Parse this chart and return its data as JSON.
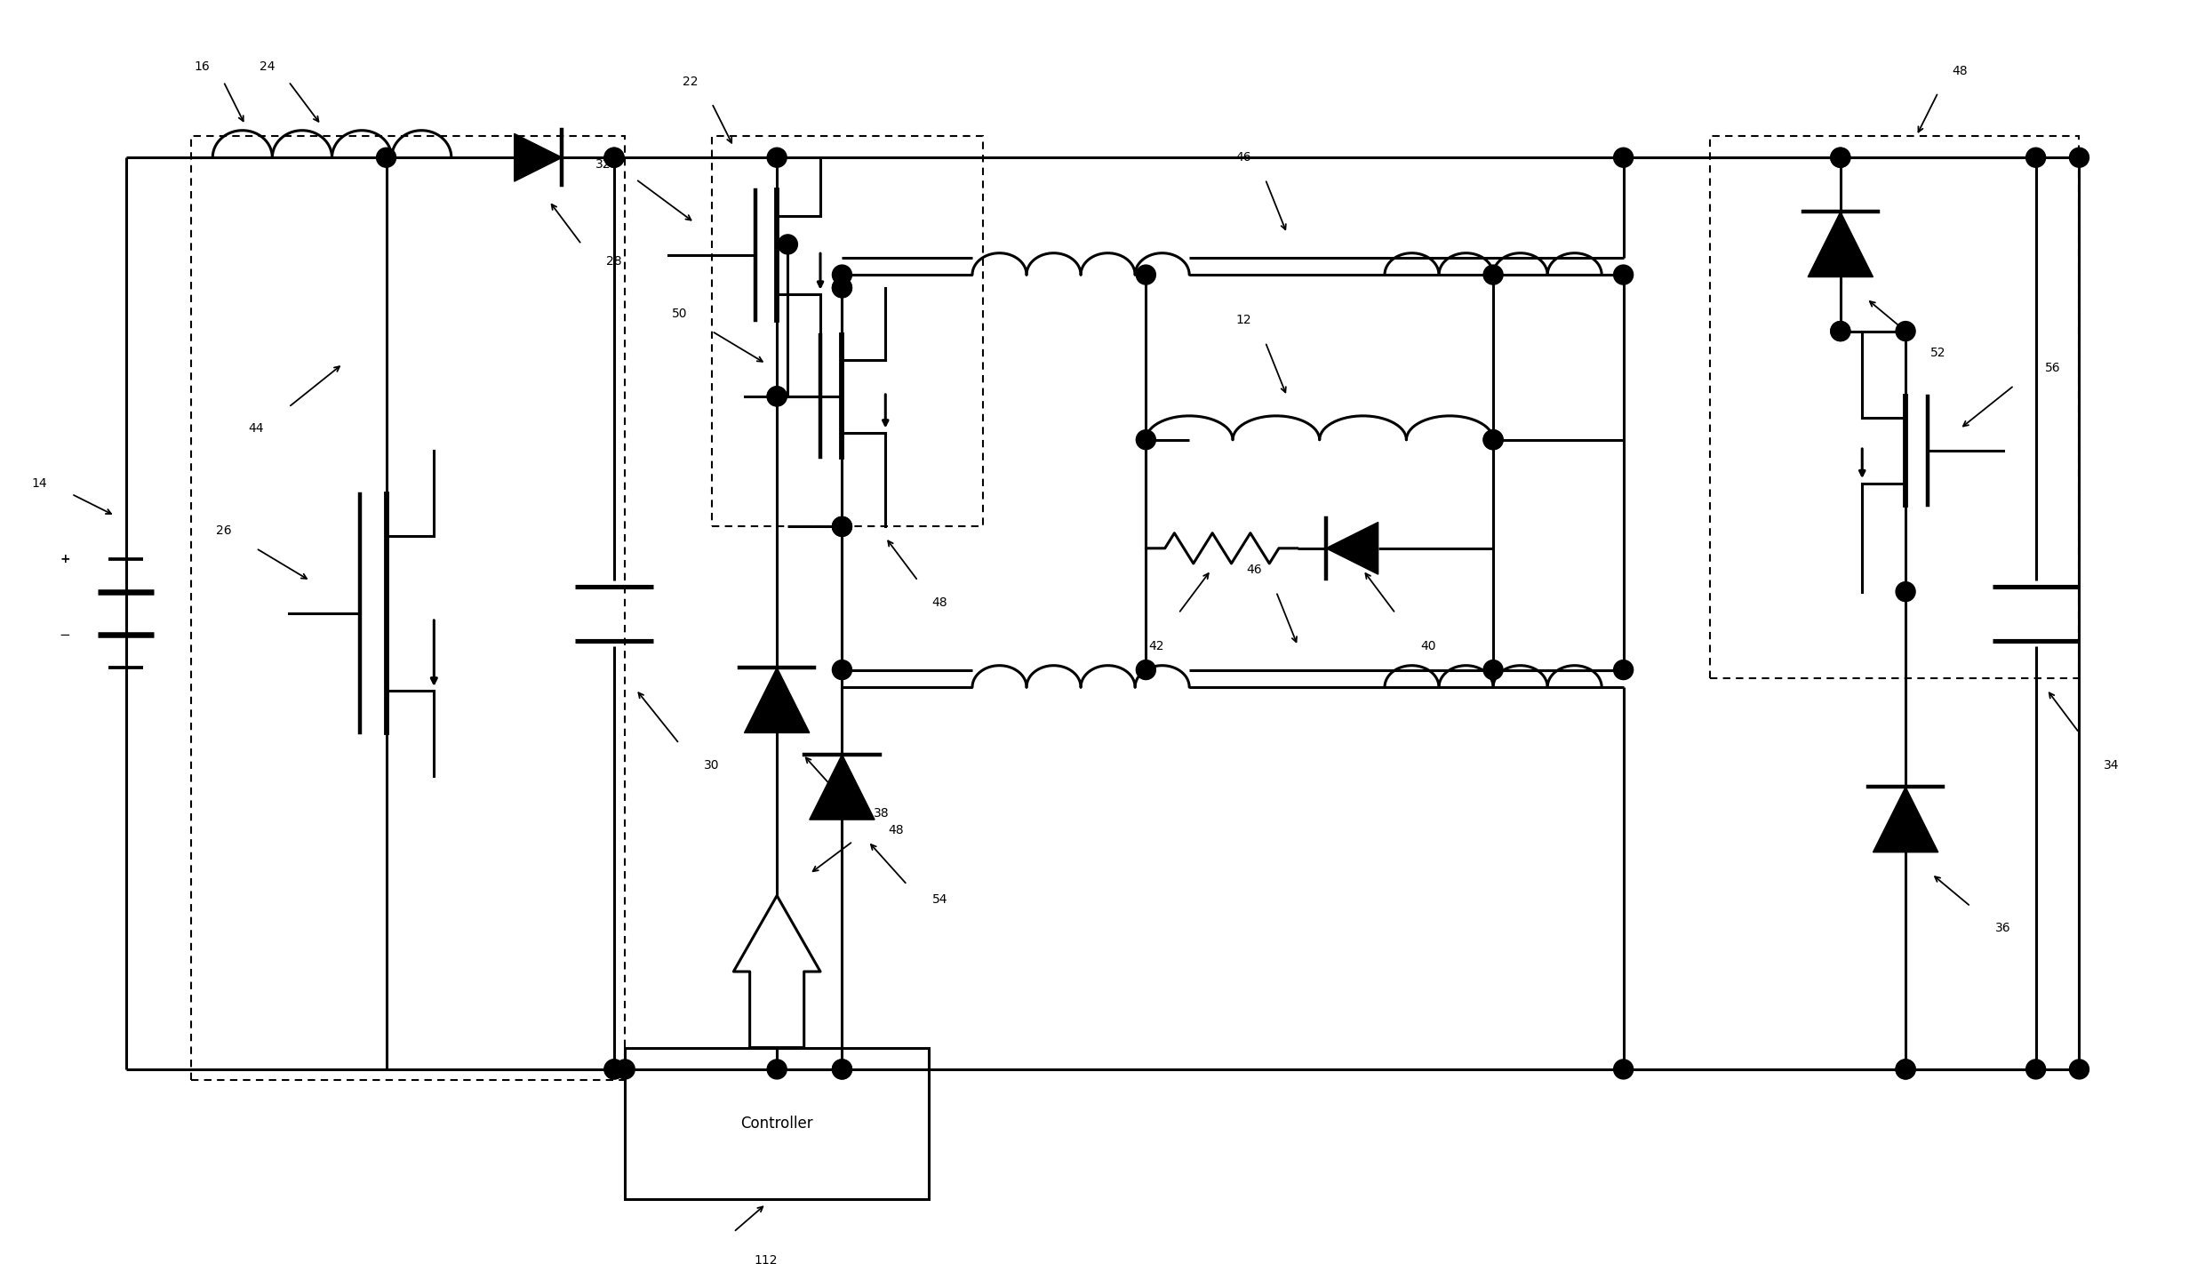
{
  "bg_color": "#ffffff",
  "line_color": "#000000",
  "lw": 2.2,
  "fig_w": 24.81,
  "fig_h": 14.22,
  "dpi": 100
}
